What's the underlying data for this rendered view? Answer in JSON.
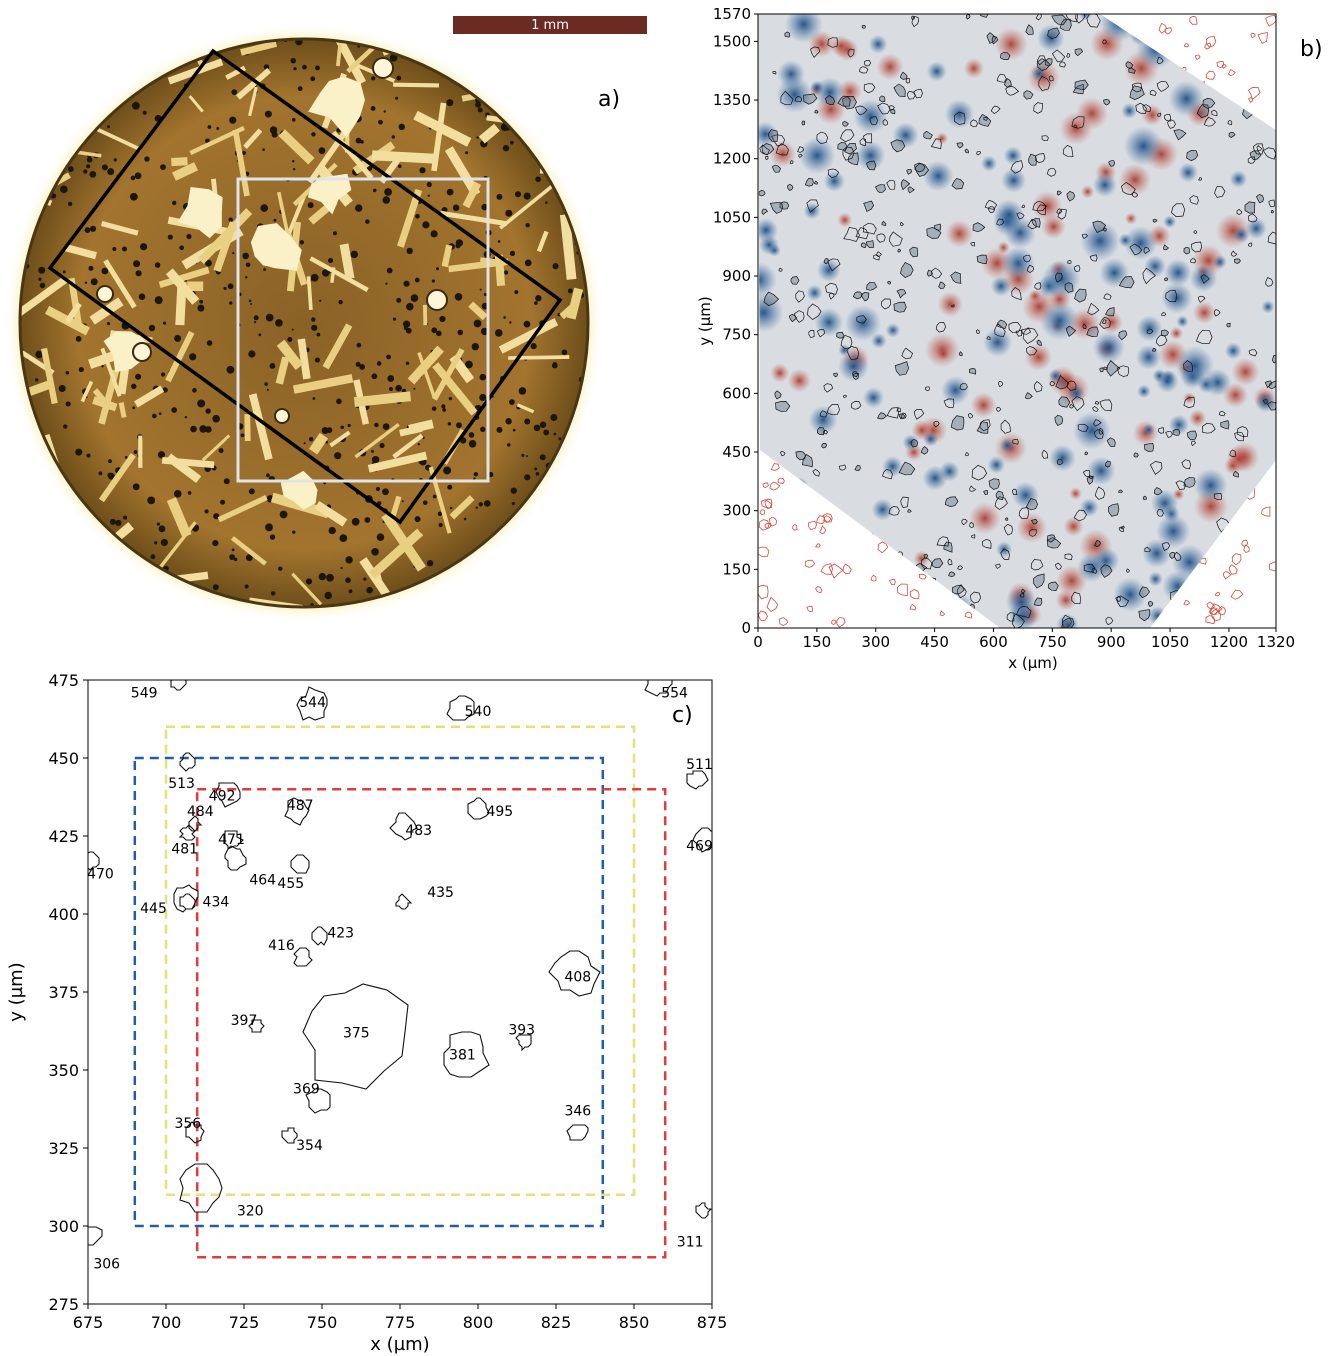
{
  "panels": {
    "a": {
      "label": "a)",
      "scale_bar_label": "1 mm",
      "colors": {
        "disc": "#a8782e",
        "halo": "#f3e79a",
        "black_rect": "#000000",
        "white_rect": "#dfe3ea",
        "scale_bar": "#6b2a22"
      }
    },
    "b": {
      "label": "b)",
      "chart_data": {
        "type": "scatter",
        "xlabel": "x (µm)",
        "ylabel": "y (µm)",
        "xlim": [
          0,
          1320
        ],
        "ylim": [
          0,
          1570
        ],
        "xticks": [
          0,
          150,
          300,
          450,
          600,
          750,
          900,
          1050,
          1200,
          1320
        ],
        "yticks": [
          0,
          150,
          300,
          450,
          600,
          750,
          900,
          1050,
          1200,
          1350,
          1500,
          1570
        ],
        "colors": {
          "blue": "#2d5c8e",
          "red": "#b03a2e",
          "background": "#d9dde2",
          "outside_outline": "#d84a3a"
        }
      }
    },
    "c": {
      "label": "c)",
      "chart_data": {
        "type": "scatter",
        "xlabel": "x (µm)",
        "ylabel": "y (µm)",
        "xlim": [
          675,
          875
        ],
        "ylim": [
          275,
          475
        ],
        "xticks": [
          675,
          700,
          725,
          750,
          775,
          800,
          825,
          850,
          875
        ],
        "yticks": [
          275,
          300,
          325,
          350,
          375,
          400,
          425,
          450,
          475
        ],
        "boxes": [
          {
            "name": "blue",
            "color": "#1f5fa6",
            "x0": 690,
            "x1": 840,
            "y0": 300,
            "y1": 450
          },
          {
            "name": "yellow",
            "color": "#e6e07a",
            "x0": 700,
            "x1": 850,
            "y0": 310,
            "y1": 460
          },
          {
            "name": "red",
            "color": "#e23b3b",
            "x0": 710,
            "x1": 860,
            "y0": 290,
            "y1": 440
          }
        ],
        "grains": [
          {
            "id": "549",
            "x": 704,
            "y": 474,
            "lx": 693,
            "ly": 471
          },
          {
            "id": "544",
            "x": 747,
            "y": 467,
            "lx": 747,
            "ly": 468
          },
          {
            "id": "540",
            "x": 795,
            "y": 466,
            "lx": 800,
            "ly": 465
          },
          {
            "id": "554",
            "x": 858,
            "y": 474,
            "lx": 863,
            "ly": 471
          },
          {
            "id": "513",
            "x": 707,
            "y": 449,
            "lx": 705,
            "ly": 442
          },
          {
            "id": "511",
            "x": 870,
            "y": 443,
            "lx": 871,
            "ly": 448
          },
          {
            "id": "492",
            "x": 720,
            "y": 439,
            "lx": 718,
            "ly": 438
          },
          {
            "id": "487",
            "x": 742,
            "y": 433,
            "lx": 743,
            "ly": 435
          },
          {
            "id": "495",
            "x": 800,
            "y": 434,
            "lx": 807,
            "ly": 433
          },
          {
            "id": "484",
            "x": 709,
            "y": 429,
            "lx": 711,
            "ly": 433
          },
          {
            "id": "483",
            "x": 776,
            "y": 428,
            "lx": 781,
            "ly": 427
          },
          {
            "id": "481",
            "x": 707,
            "y": 426,
            "lx": 706,
            "ly": 421
          },
          {
            "id": "471",
            "x": 721,
            "y": 424,
            "lx": 721,
            "ly": 424
          },
          {
            "id": "469",
            "x": 873,
            "y": 424,
            "lx": 871,
            "ly": 422
          },
          {
            "id": "470",
            "x": 676,
            "y": 417,
            "lx": 679,
            "ly": 413
          },
          {
            "id": "464",
            "x": 722,
            "y": 418,
            "lx": 731,
            "ly": 411
          },
          {
            "id": "455",
            "x": 743,
            "y": 416,
            "lx": 740,
            "ly": 410
          },
          {
            "id": "435",
            "x": 776,
            "y": 404,
            "lx": 788,
            "ly": 407
          },
          {
            "id": "445",
            "x": 706,
            "y": 405,
            "lx": 696,
            "ly": 402
          },
          {
            "id": "434",
            "x": 707,
            "y": 404,
            "lx": 716,
            "ly": 404
          },
          {
            "id": "423",
            "x": 749,
            "y": 393,
            "lx": 756,
            "ly": 394
          },
          {
            "id": "416",
            "x": 744,
            "y": 386,
            "lx": 737,
            "ly": 390
          },
          {
            "id": "408",
            "x": 831,
            "y": 381,
            "lx": 832,
            "ly": 380
          },
          {
            "id": "397",
            "x": 729,
            "y": 364,
            "lx": 725,
            "ly": 366
          },
          {
            "id": "375",
            "x": 760,
            "y": 362,
            "lx": 761,
            "ly": 362
          },
          {
            "id": "393",
            "x": 815,
            "y": 359,
            "lx": 814,
            "ly": 363
          },
          {
            "id": "381",
            "x": 796,
            "y": 355,
            "lx": 795,
            "ly": 355
          },
          {
            "id": "369",
            "x": 749,
            "y": 340,
            "lx": 745,
            "ly": 344
          },
          {
            "id": "346",
            "x": 832,
            "y": 330,
            "lx": 832,
            "ly": 337
          },
          {
            "id": "356",
            "x": 709,
            "y": 330,
            "lx": 707,
            "ly": 333
          },
          {
            "id": "354",
            "x": 740,
            "y": 329,
            "lx": 746,
            "ly": 326
          },
          {
            "id": "320",
            "x": 711,
            "y": 312,
            "lx": 727,
            "ly": 305
          },
          {
            "id": "311",
            "x": 872,
            "y": 305,
            "lx": 868,
            "ly": 295
          },
          {
            "id": "306",
            "x": 676,
            "y": 297,
            "lx": 681,
            "ly": 288
          }
        ]
      }
    }
  }
}
